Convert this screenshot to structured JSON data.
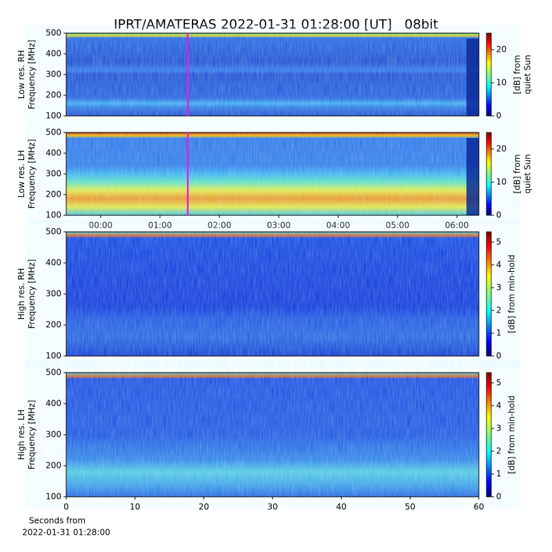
{
  "title": "IPRT/AMATERAS 2022-01-31 01:28:00 [UT]   08bit",
  "chart_data": [
    {
      "type": "heatmap",
      "ylabel": [
        "Low res. RH",
        "Frequency [MHz]"
      ],
      "ylim": [
        100,
        500
      ],
      "yticks": [
        100,
        200,
        300,
        400,
        500
      ],
      "xlim": [
        -0.58,
        6.37
      ],
      "marker_x": 1.467,
      "marker_color": "#e020e0",
      "colorbar_label": [
        "[dB] from",
        "quiet Sun"
      ],
      "clim": [
        0,
        25
      ],
      "cticks": [
        0,
        10,
        20
      ]
    },
    {
      "type": "heatmap",
      "ylabel": [
        "Low res. LH",
        "Frequency [MHz]"
      ],
      "ylim": [
        100,
        500
      ],
      "yticks": [
        100,
        200,
        300,
        400,
        500
      ],
      "xlim": [
        -0.58,
        6.37
      ],
      "marker_x": 1.467,
      "marker_color": "#e020e0",
      "xticks": [
        {
          "value": 0,
          "label": "00:00"
        },
        {
          "value": 1,
          "label": "01:00"
        },
        {
          "value": 2,
          "label": "02:00"
        },
        {
          "value": 3,
          "label": "03:00"
        },
        {
          "value": 4,
          "label": "04:00"
        },
        {
          "value": 5,
          "label": "05:00"
        },
        {
          "value": 6,
          "label": "06:00"
        }
      ],
      "colorbar_label": [
        "[dB] from",
        "quiet Sun"
      ],
      "clim": [
        0,
        25
      ],
      "cticks": [
        0,
        10,
        20
      ]
    },
    {
      "type": "heatmap",
      "ylabel": [
        "High res. RH",
        "Frequency [MHz]"
      ],
      "ylim": [
        100,
        500
      ],
      "yticks": [
        100,
        200,
        300,
        400,
        500
      ],
      "xlim": [
        0,
        60
      ],
      "colorbar_label": [
        "[dB] from min-hold"
      ],
      "clim": [
        0,
        5.45
      ],
      "cticks": [
        0,
        1,
        2,
        3,
        4,
        5
      ]
    },
    {
      "type": "heatmap",
      "ylabel": [
        "High res. LH",
        "Frequency [MHz]"
      ],
      "ylim": [
        100,
        500
      ],
      "yticks": [
        100,
        200,
        300,
        400,
        500
      ],
      "xlim": [
        0,
        60
      ],
      "xticks": [
        0,
        10,
        20,
        30,
        40,
        50,
        60
      ],
      "xlabel": [
        "Seconds from",
        "2022-01-31 01:28:00"
      ],
      "colorbar_label": [
        "[dB] from min-hold"
      ],
      "clim": [
        0,
        5.45
      ],
      "cticks": [
        0,
        1,
        2,
        3,
        4,
        5
      ]
    }
  ]
}
